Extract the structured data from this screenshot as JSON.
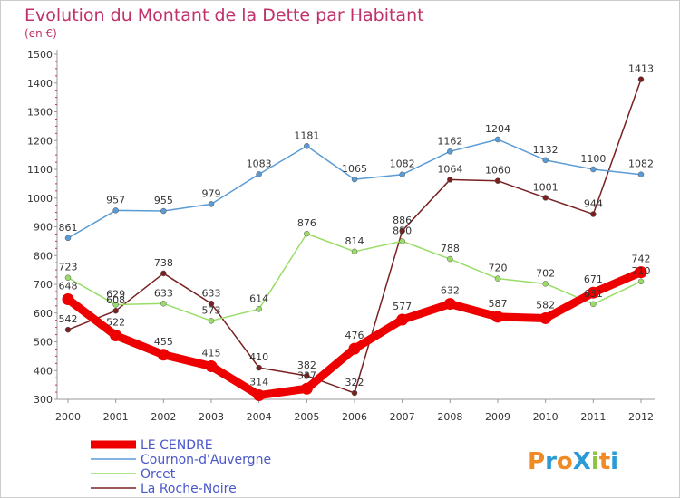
{
  "chart_data": {
    "type": "line",
    "title": "Evolution du Montant de la Dette par Habitant",
    "subtitle": "(en €)",
    "xlabel": "",
    "ylabel": "",
    "categories": [
      "2000",
      "2001",
      "2002",
      "2003",
      "2004",
      "2005",
      "2006",
      "2007",
      "2008",
      "2009",
      "2010",
      "2011",
      "2012"
    ],
    "ylim": [
      300,
      1500
    ],
    "yticks": [
      300,
      400,
      500,
      600,
      700,
      800,
      900,
      1000,
      1100,
      1200,
      1300,
      1400,
      1500
    ],
    "grid": false,
    "legend_position": "bottom-left",
    "series": [
      {
        "name": "LE CENDRE",
        "color": "#ee0000",
        "values": [
          648,
          522,
          455,
          415,
          314,
          337,
          476,
          577,
          632,
          587,
          582,
          671,
          742
        ]
      },
      {
        "name": "Cournon-d'Auvergne",
        "color": "#5b9bd5",
        "values": [
          861,
          957,
          955,
          979,
          1083,
          1181,
          1065,
          1082,
          1162,
          1204,
          1132,
          1100,
          1082
        ]
      },
      {
        "name": "Orcet",
        "color": "#99dd66",
        "values": [
          723,
          629,
          633,
          573,
          614,
          876,
          814,
          850,
          788,
          720,
          702,
          631,
          710
        ]
      },
      {
        "name": "La Roche-Noire",
        "color": "#7a2020",
        "values": [
          542,
          608,
          738,
          633,
          410,
          382,
          322,
          886,
          1064,
          1060,
          1001,
          944,
          1413
        ]
      }
    ]
  },
  "logo": {
    "text": "ProXiti",
    "letters": [
      "P",
      "r",
      "o",
      "X",
      "i",
      "t",
      "i"
    ],
    "colors": [
      "#f08a24",
      "#2a9bd6",
      "#f08a24",
      "#2a9bd6",
      "#8cc63f",
      "#f08a24",
      "#2a9bd6"
    ]
  }
}
